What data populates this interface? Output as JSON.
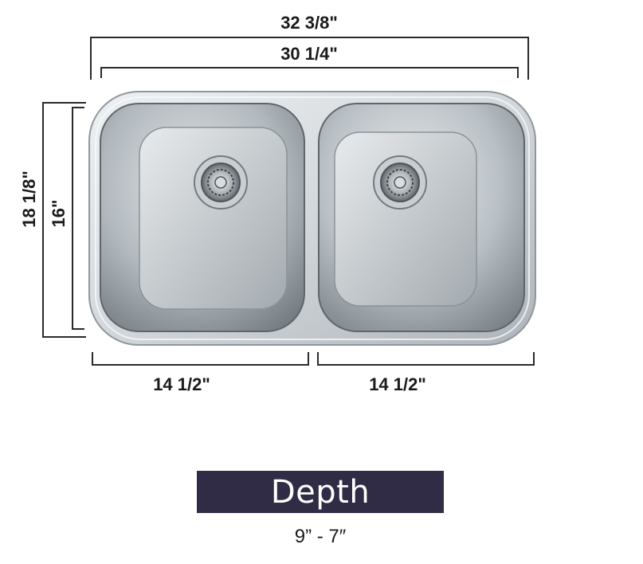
{
  "dimensions": {
    "overall_width": "32 3/8\"",
    "bowls_width": "30 1/4\"",
    "overall_height": "18 1/8\"",
    "bowl_height": "16\"",
    "left_bowl_width": "14 1/2\"",
    "right_bowl_width": "14 1/2\""
  },
  "depth": {
    "label": "Depth",
    "value": "9” - 7″"
  },
  "colors": {
    "banner_background": "#302c45",
    "banner_text": "#ffffff",
    "dimension_text": "#1a1a1a",
    "steel_light": "#e4e8eb",
    "steel_mid": "#b8bec3",
    "steel_dark": "#7d858b"
  }
}
